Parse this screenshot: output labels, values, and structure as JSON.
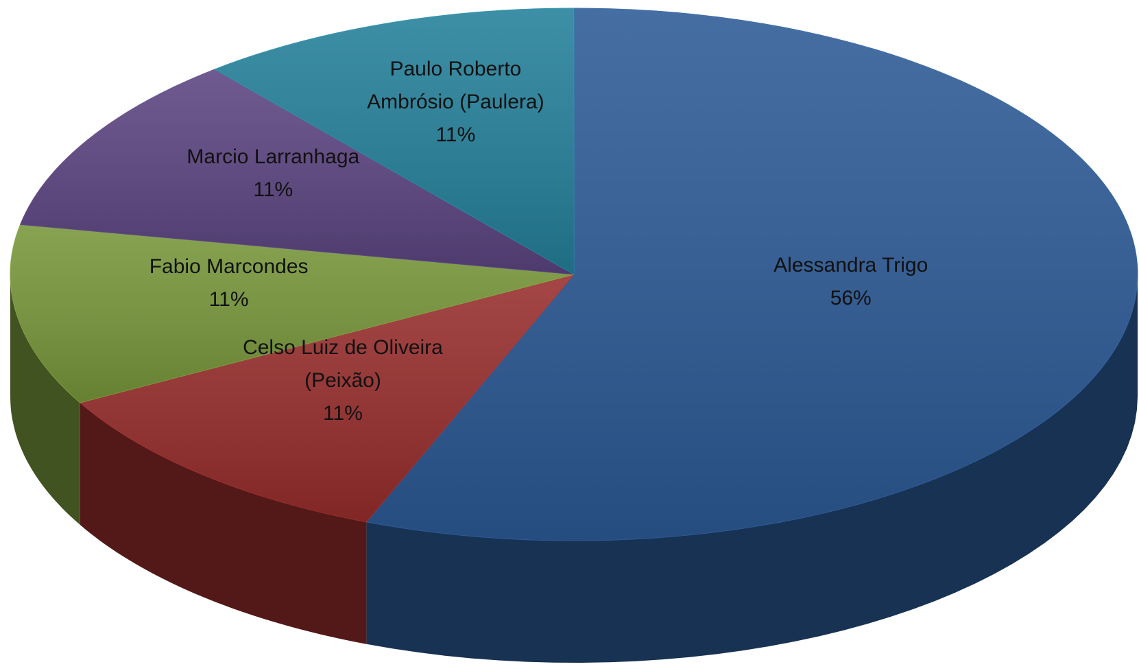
{
  "chart_data": {
    "type": "pie",
    "categories": [
      "Alessandra Trigo",
      "Celso Luiz de Oliveira (Peixão)",
      "Fabio Marcondes",
      "Marcio Larranhaga",
      "Paulo Roberto Ambrósio (Paulera)"
    ],
    "values": [
      56,
      11,
      11,
      11,
      11
    ],
    "value_labels": [
      "56%",
      "11%",
      "11%",
      "11%",
      "11%"
    ],
    "colors": [
      "#2c5a96",
      "#972d2c",
      "#77973a",
      "#5b4480",
      "#23809a"
    ]
  }
}
